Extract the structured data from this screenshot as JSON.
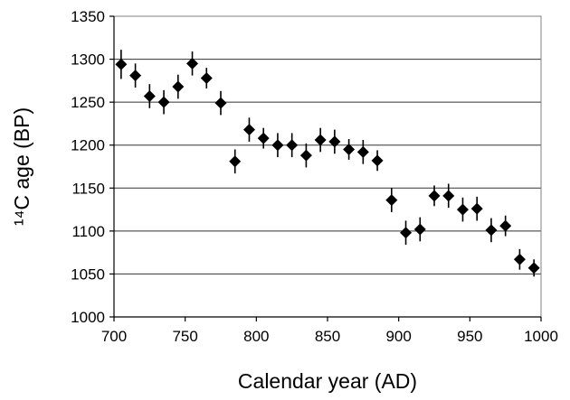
{
  "chart_data": {
    "type": "scatter",
    "title": "",
    "xlabel": "Calendar year (AD)",
    "ylabel": "¹⁴C age (BP)",
    "xlim": [
      700,
      1000
    ],
    "ylim": [
      1000,
      1350
    ],
    "x_ticks": [
      "700",
      "750",
      "800",
      "850",
      "900",
      "950",
      "1000"
    ],
    "y_ticks": [
      "1000",
      "1050",
      "1100",
      "1150",
      "1200",
      "1250",
      "1300",
      "1350"
    ],
    "grid": "horizontal",
    "marker": "diamond",
    "marker_color": "#000000",
    "series": [
      {
        "points": [
          {
            "x": 705,
            "y": 1294,
            "err": 17
          },
          {
            "x": 715,
            "y": 1281,
            "err": 14
          },
          {
            "x": 725,
            "y": 1257,
            "err": 14
          },
          {
            "x": 735,
            "y": 1250,
            "err": 14
          },
          {
            "x": 745,
            "y": 1268,
            "err": 14
          },
          {
            "x": 755,
            "y": 1295,
            "err": 14
          },
          {
            "x": 765,
            "y": 1278,
            "err": 12
          },
          {
            "x": 775,
            "y": 1249,
            "err": 14
          },
          {
            "x": 785,
            "y": 1181,
            "err": 14
          },
          {
            "x": 795,
            "y": 1218,
            "err": 14
          },
          {
            "x": 805,
            "y": 1208,
            "err": 12
          },
          {
            "x": 815,
            "y": 1200,
            "err": 14
          },
          {
            "x": 825,
            "y": 1200,
            "err": 14
          },
          {
            "x": 835,
            "y": 1188,
            "err": 14
          },
          {
            "x": 845,
            "y": 1206,
            "err": 14
          },
          {
            "x": 855,
            "y": 1204,
            "err": 14
          },
          {
            "x": 865,
            "y": 1195,
            "err": 12
          },
          {
            "x": 875,
            "y": 1192,
            "err": 14
          },
          {
            "x": 885,
            "y": 1182,
            "err": 12
          },
          {
            "x": 895,
            "y": 1136,
            "err": 14
          },
          {
            "x": 905,
            "y": 1098,
            "err": 14
          },
          {
            "x": 915,
            "y": 1102,
            "err": 14
          },
          {
            "x": 925,
            "y": 1141,
            "err": 12
          },
          {
            "x": 935,
            "y": 1141,
            "err": 14
          },
          {
            "x": 945,
            "y": 1125,
            "err": 14
          },
          {
            "x": 955,
            "y": 1126,
            "err": 14
          },
          {
            "x": 965,
            "y": 1101,
            "err": 14
          },
          {
            "x": 975,
            "y": 1106,
            "err": 12
          },
          {
            "x": 985,
            "y": 1067,
            "err": 12
          },
          {
            "x": 995,
            "y": 1057,
            "err": 10
          }
        ]
      }
    ]
  }
}
